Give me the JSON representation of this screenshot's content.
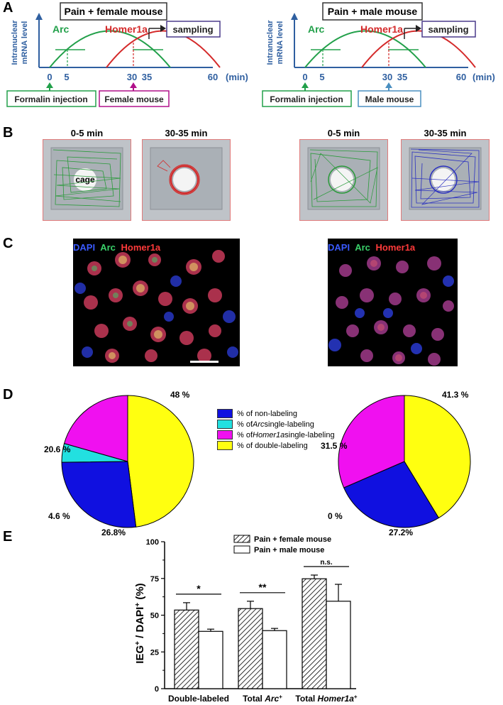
{
  "panels": {
    "A": "A",
    "B": "B",
    "C": "C",
    "D": "D",
    "E": "E"
  },
  "panel_a": {
    "left": {
      "title": "Pain + female mouse",
      "ylabel_line1": "Intranuclear",
      "ylabel_line2": "mRNA level",
      "arc": "Arc",
      "homer": "Homer1a",
      "sampling": "sampling",
      "ticks": [
        "0",
        "5",
        "30",
        "35",
        "60",
        "(min)"
      ],
      "box1": "Formalin injection",
      "box2": "Female mouse"
    },
    "right": {
      "title": "Pain + male mouse",
      "ylabel_line1": "Intranuclear",
      "ylabel_line2": "mRNA level",
      "arc": "Arc",
      "homer": "Homer1a",
      "sampling": "sampling",
      "ticks": [
        "0",
        "5",
        "30",
        "35",
        "60",
        "(min)"
      ],
      "box1": "Formalin injection",
      "box2": "Male mouse"
    },
    "colors": {
      "arc": "#22a04a",
      "homer": "#d42a2a",
      "axis": "#2f5fa0",
      "female": "#b0108a",
      "male": "#4a8fc0",
      "sampling": "#4a3a8a"
    }
  },
  "panel_b": {
    "labels": [
      "0-5 min",
      "30-35 min",
      "0-5 min",
      "30-35 min"
    ],
    "cage_label": "cage",
    "track_colors": [
      "#2a9a3a",
      "#d42a2a",
      "#2a9a3a",
      "#2a30c0"
    ]
  },
  "panel_c": {
    "left": {
      "dapi": "DAPI",
      "arc": "Arc",
      "homer": "Homer1a"
    },
    "right": {
      "dapi": "DAPI",
      "arc": "Arc",
      "homer": "Homer1a"
    }
  },
  "legend": {
    "items": [
      {
        "pre": "% of non-labeling",
        "italic": "",
        "post": "",
        "color": "#1010e0"
      },
      {
        "pre": "% of ",
        "italic": "Arc",
        "post": " single-labeling",
        "color": "#22e0e0"
      },
      {
        "pre": "% of ",
        "italic": "Homer1a",
        "post": " single-labeling",
        "color": "#f010f0"
      },
      {
        "pre": "% of double-labeling",
        "italic": "",
        "post": "",
        "color": "#ffff10"
      }
    ]
  },
  "chart_data": [
    {
      "type": "pie",
      "title": "",
      "labels": [
        "non-labeling",
        "Arc single-labeling",
        "Homer1a single-labeling",
        "double-labeling"
      ],
      "values": [
        26.8,
        4.6,
        20.6,
        48
      ],
      "value_labels": [
        "26.8%",
        "4.6 %",
        "20.6 %",
        "48 %"
      ]
    },
    {
      "type": "pie",
      "title": "",
      "labels": [
        "non-labeling",
        "Arc single-labeling",
        "Homer1a single-labeling",
        "double-labeling"
      ],
      "values": [
        27.2,
        0,
        31.5,
        41.3
      ],
      "value_labels": [
        "27.2%",
        "0 %",
        "31.5 %",
        "41.3 %"
      ]
    },
    {
      "type": "bar",
      "categories": [
        "Double-labeled",
        "Total Arc+",
        "Total Homer1a+"
      ],
      "category_parts": [
        {
          "pre": "Double-labeled",
          "italic": "",
          "sup": ""
        },
        {
          "pre": "Total ",
          "italic": "Arc",
          "sup": "+"
        },
        {
          "pre": "Total ",
          "italic": "Homer1a",
          "sup": "+"
        }
      ],
      "series": [
        {
          "name": "Pain + female mouse",
          "values": [
            53.5,
            54.5,
            74.8
          ],
          "errors": [
            5,
            5,
            2.5
          ]
        },
        {
          "name": "Pain + male mouse",
          "values": [
            39,
            39.5,
            59.5
          ],
          "errors": [
            1.5,
            1.5,
            11.5
          ]
        }
      ],
      "ylabel": "IEG+ / DAPI+ (%)",
      "ylabel_parts": {
        "a": "IEG",
        "b": " / DAPI",
        "c": " (%)",
        "sup": "+"
      },
      "ylim": [
        0,
        100
      ],
      "yticks": [
        "0",
        "25",
        "50",
        "75",
        "100"
      ],
      "significance": [
        "*",
        "**",
        "n.s."
      ]
    }
  ]
}
